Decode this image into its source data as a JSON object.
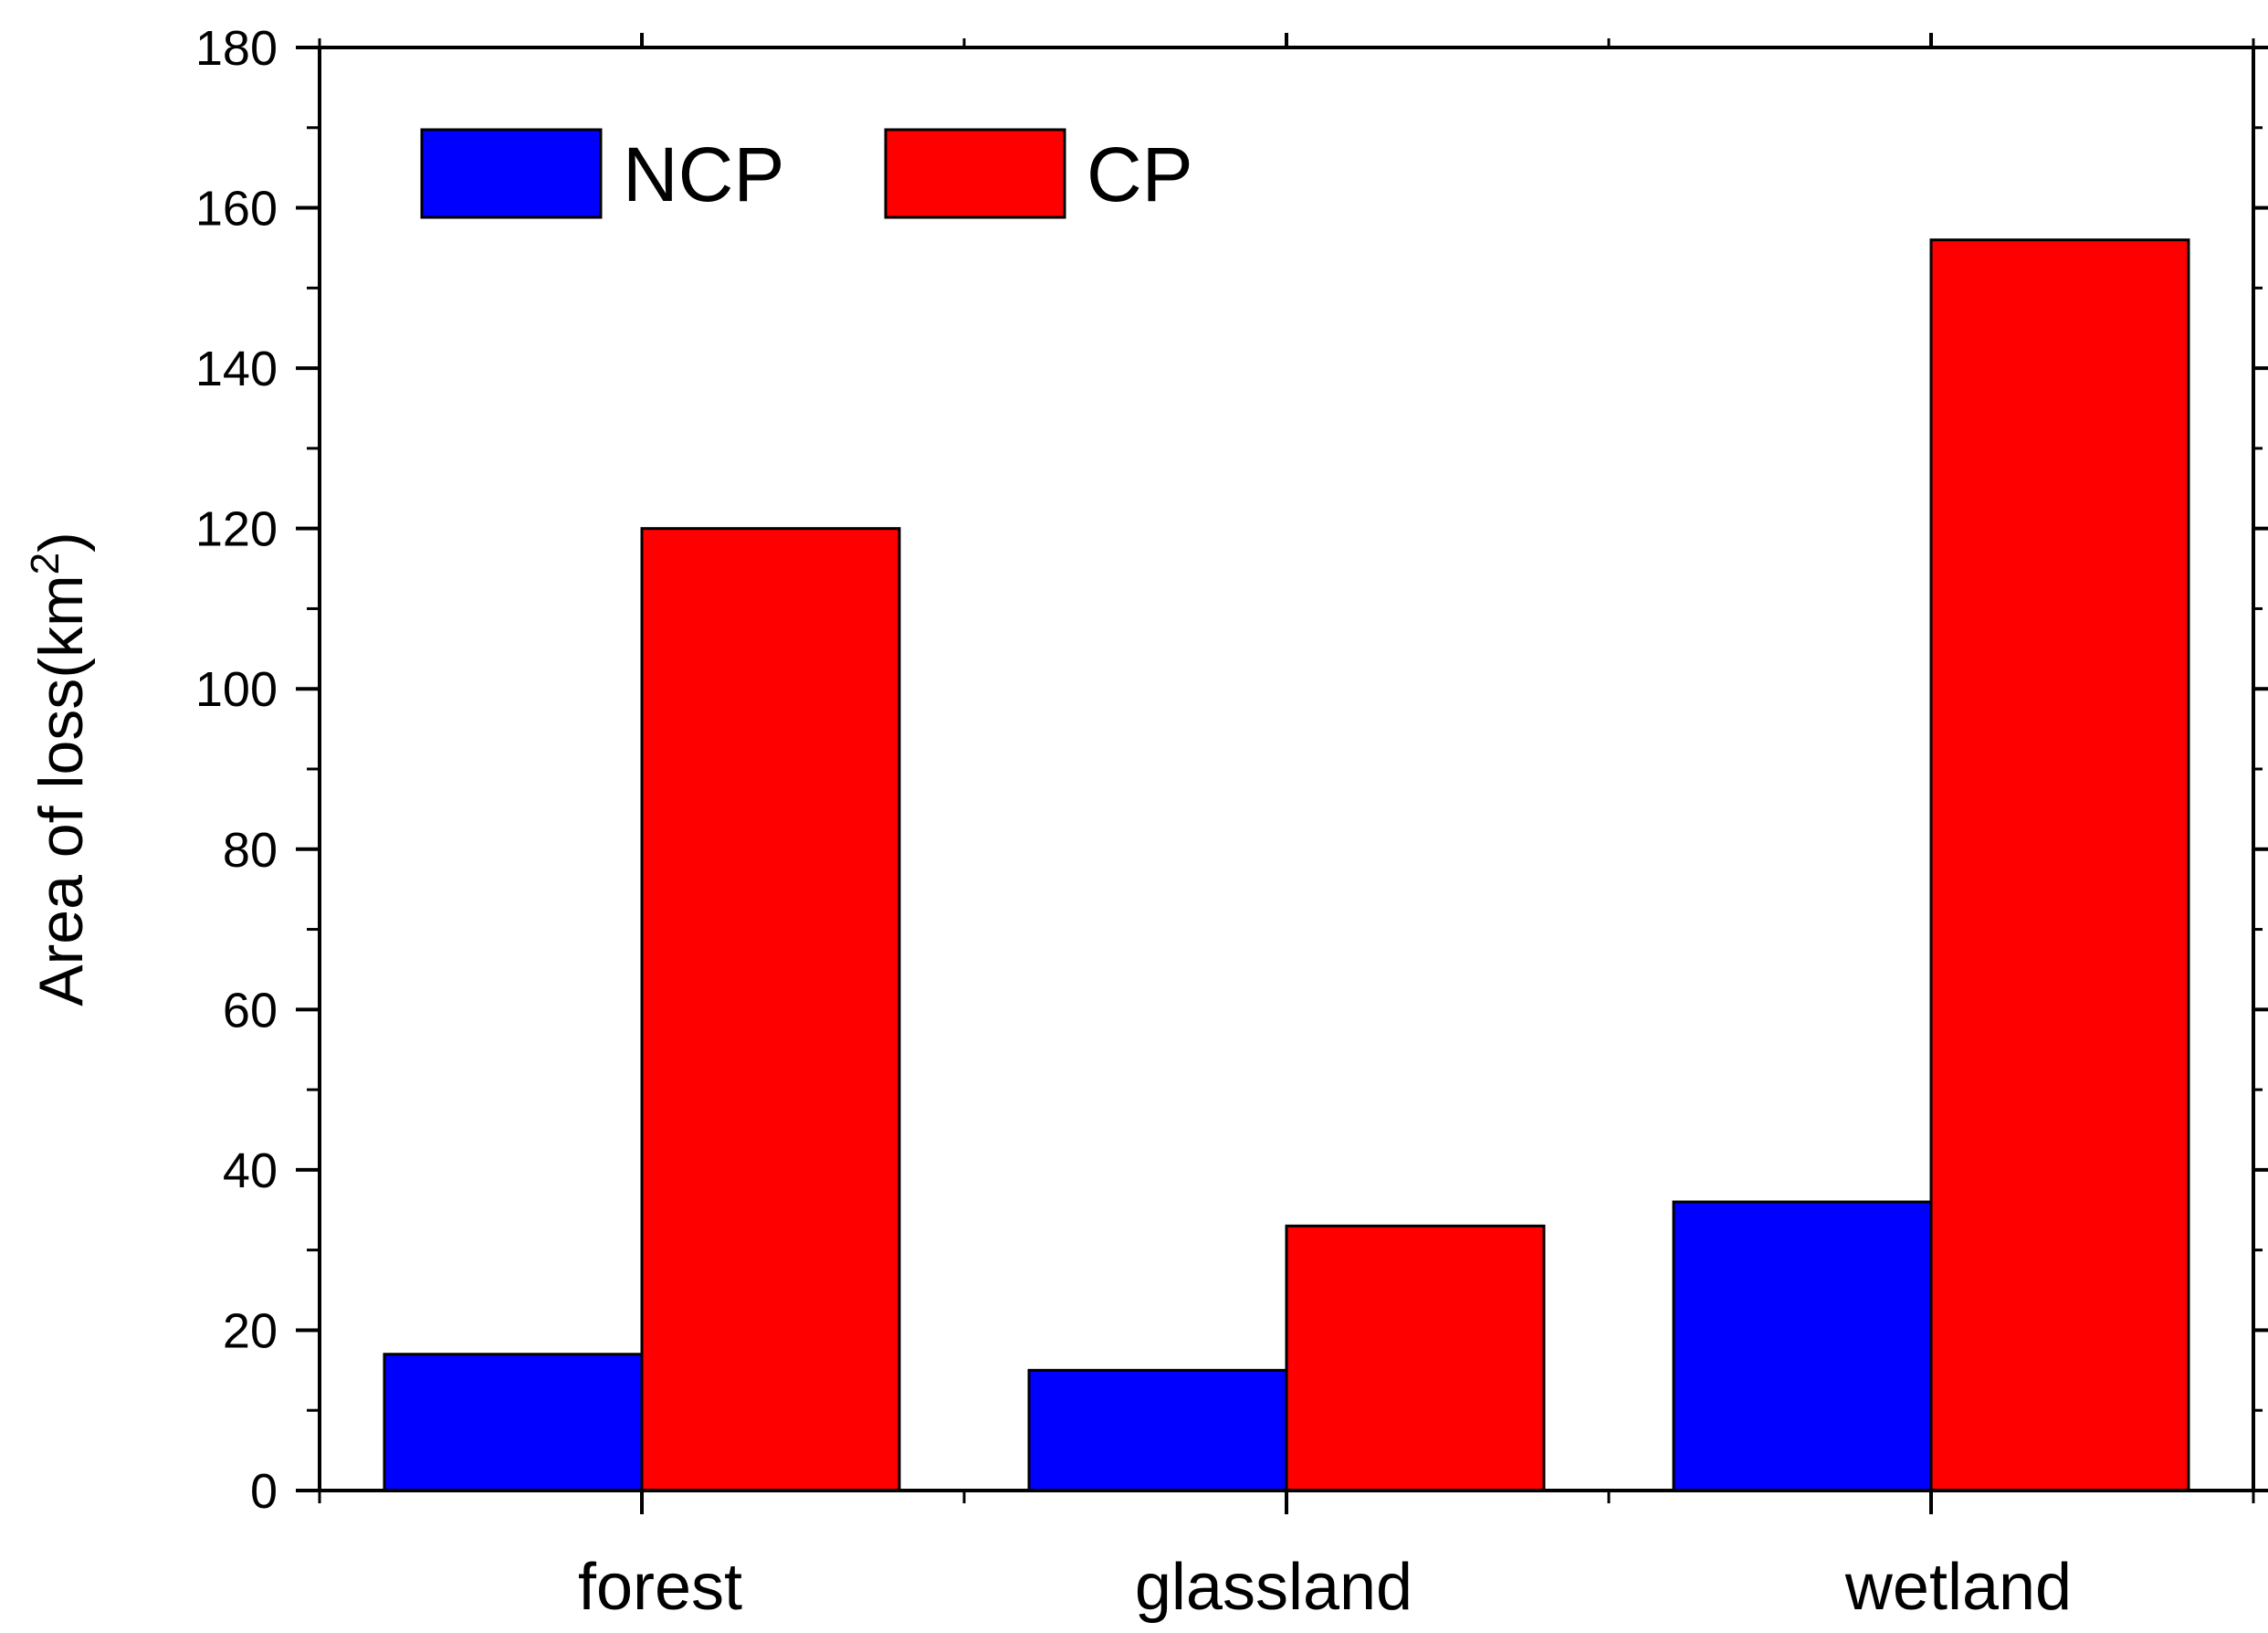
{
  "chart_data": {
    "type": "bar",
    "categories": [
      "forest",
      "glassland",
      "wetland"
    ],
    "series": [
      {
        "name": "NCP",
        "color": "#0000ff",
        "values": [
          17,
          15,
          36
        ]
      },
      {
        "name": "CP",
        "color": "#ff0000",
        "values": [
          120,
          33,
          156
        ]
      }
    ],
    "title": "",
    "xlabel": "",
    "ylabel": "Area of loss(km",
    "ylabel_superscript": "2",
    "ylabel_close": ")",
    "ylim": [
      0,
      180
    ],
    "yticks": [
      0,
      20,
      40,
      60,
      80,
      100,
      120,
      140,
      160,
      180
    ],
    "grid": false,
    "legend_position": "top-left"
  }
}
